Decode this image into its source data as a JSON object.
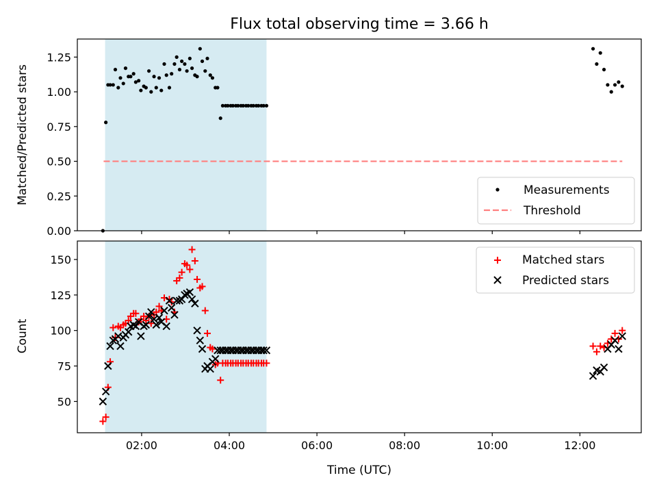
{
  "figure_title": "Flux total observing time = 3.66 h",
  "colors": {
    "background": "#ffffff",
    "shade": "#add8e6",
    "measurement": "#000000",
    "threshold": "#ff7f7f",
    "matched": "#ff0000",
    "predicted": "#000000"
  },
  "chart_data": [
    {
      "type": "scatter",
      "title": "",
      "xlabel": "",
      "ylabel": "Matched/Predicted stars",
      "xlim": [
        "00:32",
        "13:24"
      ],
      "ylim": [
        0,
        1.38
      ],
      "yticks": [
        0.0,
        0.25,
        0.5,
        0.75,
        1.0,
        1.25
      ],
      "ytick_labels": [
        "0.00",
        "0.25",
        "0.50",
        "0.75",
        "1.00",
        "1.25"
      ],
      "xticks": [
        "02:00",
        "04:00",
        "06:00",
        "08:00",
        "10:00",
        "12:00"
      ],
      "grid": false,
      "legend": {
        "position": "lower-right",
        "entries": [
          "Measurements",
          "Threshold"
        ]
      },
      "shaded_span": {
        "start": "01:10",
        "end": "04:51"
      },
      "threshold_line": {
        "name": "Threshold",
        "y": 0.5,
        "x_start": "01:08",
        "x_end": "12:58"
      },
      "series": [
        {
          "name": "Measurements",
          "x": [
            "01:07",
            "01:11",
            "01:14",
            "01:17",
            "01:21",
            "01:24",
            "01:28",
            "01:31",
            "01:35",
            "01:38",
            "01:42",
            "01:45",
            "01:49",
            "01:52",
            "01:56",
            "01:59",
            "02:03",
            "02:06",
            "02:10",
            "02:13",
            "02:17",
            "02:20",
            "02:24",
            "02:27",
            "02:31",
            "02:34",
            "02:38",
            "02:41",
            "02:45",
            "02:48",
            "02:52",
            "02:55",
            "02:59",
            "03:02",
            "03:06",
            "03:09",
            "03:13",
            "03:16",
            "03:20",
            "03:23",
            "03:27",
            "03:30",
            "03:34",
            "03:37",
            "03:41",
            "03:44",
            "03:48",
            "03:51",
            "03:55",
            "03:58",
            "04:02",
            "04:05",
            "04:09",
            "04:12",
            "04:16",
            "04:19",
            "04:23",
            "04:26",
            "04:30",
            "04:33",
            "04:37",
            "04:40",
            "04:44",
            "04:47",
            "04:51",
            "12:18",
            "12:23",
            "12:28",
            "12:33",
            "12:38",
            "12:43",
            "12:48",
            "12:53",
            "12:58"
          ],
          "y": [
            0.0,
            0.78,
            1.05,
            1.05,
            1.05,
            1.16,
            1.03,
            1.1,
            1.06,
            1.17,
            1.11,
            1.11,
            1.13,
            1.07,
            1.08,
            1.01,
            1.04,
            1.03,
            1.15,
            1.0,
            1.11,
            1.03,
            1.1,
            1.01,
            1.2,
            1.12,
            1.03,
            1.13,
            1.2,
            1.25,
            1.16,
            1.22,
            1.2,
            1.15,
            1.24,
            1.17,
            1.12,
            1.11,
            1.31,
            1.22,
            1.15,
            1.24,
            1.12,
            1.1,
            1.03,
            1.03,
            0.81,
            0.9,
            0.9,
            0.9,
            0.9,
            0.9,
            0.9,
            0.9,
            0.9,
            0.9,
            0.9,
            0.9,
            0.9,
            0.9,
            0.9,
            0.9,
            0.9,
            0.9,
            0.9,
            1.31,
            1.2,
            1.28,
            1.16,
            1.05,
            1.0,
            1.05,
            1.07,
            1.04
          ]
        }
      ]
    },
    {
      "type": "scatter",
      "title": "",
      "xlabel": "Time (UTC)",
      "ylabel": "Count",
      "xlim": [
        "00:32",
        "13:24"
      ],
      "ylim": [
        28,
        163
      ],
      "yticks": [
        50,
        75,
        100,
        125,
        150
      ],
      "xticks": [
        "02:00",
        "04:00",
        "06:00",
        "08:00",
        "10:00",
        "12:00"
      ],
      "grid": false,
      "legend": {
        "position": "top-right",
        "entries": [
          "Matched stars",
          "Predicted stars"
        ]
      },
      "shaded_span": {
        "start": "01:10",
        "end": "04:51"
      },
      "series": [
        {
          "name": "Matched stars",
          "marker": "plus",
          "x": [
            "01:07",
            "01:11",
            "01:14",
            "01:17",
            "01:21",
            "01:24",
            "01:28",
            "01:31",
            "01:35",
            "01:38",
            "01:42",
            "01:45",
            "01:49",
            "01:52",
            "01:56",
            "01:59",
            "02:03",
            "02:06",
            "02:10",
            "02:13",
            "02:17",
            "02:20",
            "02:24",
            "02:27",
            "02:31",
            "02:34",
            "02:38",
            "02:41",
            "02:45",
            "02:48",
            "02:52",
            "02:55",
            "02:59",
            "03:02",
            "03:06",
            "03:09",
            "03:13",
            "03:16",
            "03:20",
            "03:23",
            "03:27",
            "03:30",
            "03:34",
            "03:37",
            "03:41",
            "03:44",
            "03:48",
            "03:51",
            "03:55",
            "03:58",
            "04:02",
            "04:05",
            "04:09",
            "04:12",
            "04:16",
            "04:19",
            "04:23",
            "04:26",
            "04:30",
            "04:33",
            "04:37",
            "04:40",
            "04:44",
            "04:47",
            "04:51",
            "12:18",
            "12:23",
            "12:28",
            "12:33",
            "12:38",
            "12:43",
            "12:48",
            "12:53",
            "12:58"
          ],
          "y": [
            36,
            39,
            60,
            78,
            102,
            95,
            103,
            102,
            104,
            105,
            107,
            110,
            112,
            112,
            106,
            108,
            110,
            107,
            110,
            105,
            111,
            113,
            117,
            114,
            123,
            108,
            122,
            120,
            113,
            135,
            137,
            141,
            147,
            146,
            143,
            157,
            149,
            136,
            130,
            131,
            114,
            98,
            88,
            87,
            76,
            77,
            65,
            77,
            77,
            77,
            77,
            77,
            77,
            77,
            77,
            77,
            77,
            77,
            77,
            77,
            77,
            77,
            77,
            77,
            77,
            89,
            85,
            89,
            88,
            91,
            94,
            98,
            94,
            100
          ]
        },
        {
          "name": "Predicted stars",
          "marker": "x",
          "x": [
            "01:07",
            "01:11",
            "01:14",
            "01:17",
            "01:21",
            "01:24",
            "01:28",
            "01:31",
            "01:35",
            "01:38",
            "01:42",
            "01:45",
            "01:49",
            "01:52",
            "01:56",
            "01:59",
            "02:03",
            "02:06",
            "02:10",
            "02:13",
            "02:17",
            "02:20",
            "02:24",
            "02:27",
            "02:31",
            "02:34",
            "02:38",
            "02:41",
            "02:45",
            "02:48",
            "02:52",
            "02:55",
            "02:59",
            "03:02",
            "03:06",
            "03:09",
            "03:13",
            "03:16",
            "03:20",
            "03:23",
            "03:27",
            "03:30",
            "03:34",
            "03:37",
            "03:41",
            "03:44",
            "03:48",
            "03:51",
            "03:55",
            "03:58",
            "04:02",
            "04:05",
            "04:09",
            "04:12",
            "04:16",
            "04:19",
            "04:23",
            "04:26",
            "04:30",
            "04:33",
            "04:37",
            "04:40",
            "04:44",
            "04:47",
            "04:51",
            "12:18",
            "12:23",
            "12:28",
            "12:33",
            "12:38",
            "12:43",
            "12:48",
            "12:53",
            "12:58"
          ],
          "y": [
            50,
            57,
            75,
            89,
            93,
            94,
            96,
            89,
            95,
            97,
            99,
            103,
            104,
            103,
            106,
            96,
            103,
            104,
            110,
            113,
            108,
            104,
            109,
            106,
            114,
            103,
            121,
            116,
            111,
            121,
            121,
            122,
            125,
            126,
            127,
            122,
            119,
            100,
            93,
            87,
            73,
            75,
            73,
            78,
            80,
            86,
            86,
            86,
            86,
            86,
            86,
            86,
            86,
            86,
            86,
            86,
            86,
            86,
            86,
            86,
            86,
            86,
            86,
            86,
            86,
            68,
            72,
            71,
            74,
            87,
            90,
            93,
            87,
            96
          ]
        }
      ]
    }
  ]
}
